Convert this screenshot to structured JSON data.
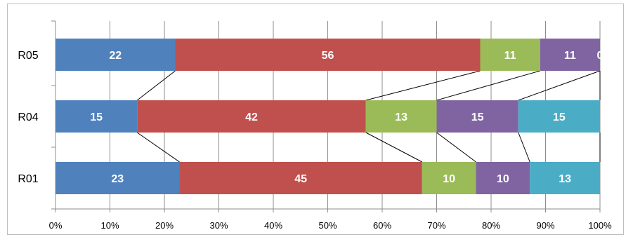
{
  "chart_data": {
    "type": "bar",
    "orientation": "horizontal",
    "stacking": "percent",
    "categories": [
      "R05",
      "R04",
      "R01"
    ],
    "series": [
      {
        "color": "#4f81bd",
        "values": [
          22,
          15,
          23
        ]
      },
      {
        "color": "#c0504d",
        "values": [
          56,
          42,
          45
        ]
      },
      {
        "color": "#9bbb59",
        "values": [
          11,
          13,
          10
        ]
      },
      {
        "color": "#8064a2",
        "values": [
          11,
          15,
          10
        ]
      },
      {
        "color": "#4bacc6",
        "values": [
          0,
          15,
          13
        ]
      }
    ],
    "x_ticks": [
      "0%",
      "10%",
      "20%",
      "30%",
      "40%",
      "50%",
      "60%",
      "70%",
      "80%",
      "90%",
      "100%"
    ],
    "xlim": [
      0,
      100
    ],
    "grid": "vertical",
    "series_lines": true,
    "legend": "none",
    "title": "",
    "xlabel": "",
    "ylabel": ""
  }
}
